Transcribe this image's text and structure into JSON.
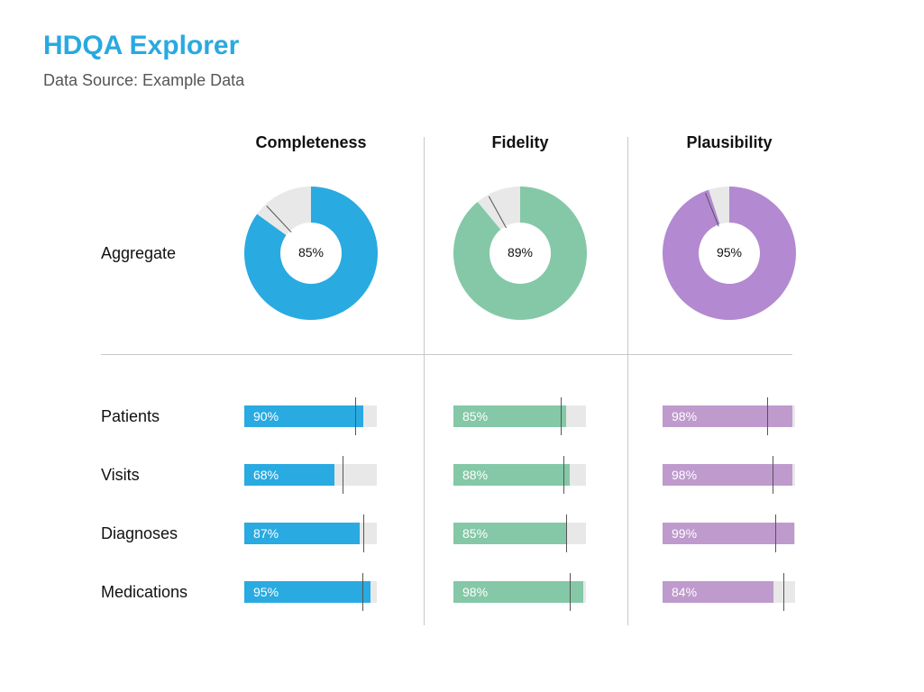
{
  "header": {
    "title": "HDQA Explorer",
    "subtitle": "Data Source: Example Data"
  },
  "columns": [
    "Completeness",
    "Fidelity",
    "Plausibility"
  ],
  "rows": {
    "aggregate_label": "Aggregate",
    "labels": [
      "Patients",
      "Visits",
      "Diagnoses",
      "Medications"
    ]
  },
  "colors": {
    "completeness": "#29aae1",
    "fidelity": "#84c8a7",
    "plausibility": "#b389d1",
    "plausibility_bar": "#be9acd",
    "remainder": "#e8e8e8",
    "target_line": "#555555"
  },
  "chart_data": {
    "type": "bar",
    "aggregate": {
      "type": "pie",
      "labels": [
        "85%",
        "89%",
        "95%"
      ],
      "values": [
        85,
        89,
        95
      ],
      "targets": [
        88,
        92,
        94
      ]
    },
    "categories": [
      "Patients",
      "Visits",
      "Diagnoses",
      "Medications"
    ],
    "xlim": [
      0,
      100
    ],
    "series": [
      {
        "name": "Completeness",
        "values": [
          90,
          68,
          87,
          95
        ],
        "labels": [
          "90%",
          "68%",
          "87%",
          "95%"
        ],
        "targets": [
          84,
          74,
          90,
          89
        ]
      },
      {
        "name": "Fidelity",
        "values": [
          85,
          88,
          85,
          98
        ],
        "labels": [
          "85%",
          "88%",
          "85%",
          "98%"
        ],
        "targets": [
          81,
          83,
          85,
          88
        ]
      },
      {
        "name": "Plausibility",
        "values": [
          98,
          98,
          99,
          84
        ],
        "labels": [
          "98%",
          "98%",
          "99%",
          "84%"
        ],
        "targets": [
          79,
          83,
          85,
          91
        ]
      }
    ]
  }
}
